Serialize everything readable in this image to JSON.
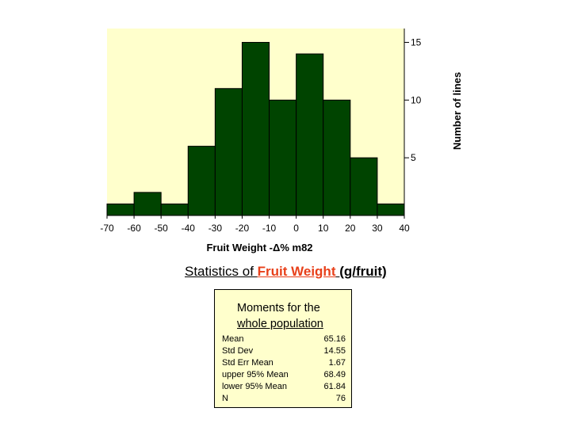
{
  "chart_data": {
    "type": "bar",
    "subtype": "histogram",
    "xlabel": "Fruit Weight -Δ% m82",
    "ylabel": "Number of lines",
    "bins": [
      {
        "from": -70,
        "to": -60,
        "count": 1
      },
      {
        "from": -60,
        "to": -50,
        "count": 2
      },
      {
        "from": -50,
        "to": -40,
        "count": 1
      },
      {
        "from": -40,
        "to": -30,
        "count": 6
      },
      {
        "from": -30,
        "to": -20,
        "count": 11
      },
      {
        "from": -20,
        "to": -10,
        "count": 15
      },
      {
        "from": -10,
        "to": 0,
        "count": 10
      },
      {
        "from": 0,
        "to": 10,
        "count": 14
      },
      {
        "from": 10,
        "to": 20,
        "count": 10
      },
      {
        "from": 20,
        "to": 30,
        "count": 5
      },
      {
        "from": 30,
        "to": 40,
        "count": 1
      }
    ],
    "xlim": [
      -70,
      40
    ],
    "ylim": [
      0,
      16.2
    ],
    "x_ticks": [
      "-70",
      "-60",
      "-50",
      "-40",
      "-30",
      "-20",
      "-10",
      "0",
      "10",
      "20",
      "30",
      "40"
    ],
    "y_ticks": [
      {
        "value": 5,
        "label": "5"
      },
      {
        "value": 10,
        "label": "10"
      },
      {
        "value": 15,
        "label": "15"
      }
    ],
    "y_axis_side": "right",
    "plot_background": "#ffffcc",
    "bar_color": "#004400"
  },
  "stats": {
    "heading_prefix": "Statistics of ",
    "heading_highlight": "Fruit Weight",
    "heading_unit": "(g/fruit)",
    "highlight_color": "#e8401a",
    "box_title_line1": "Moments for the",
    "box_title_line2": "whole population",
    "rows": [
      {
        "label": "Mean",
        "value": "65.16"
      },
      {
        "label": "Std Dev",
        "value": "14.55"
      },
      {
        "label": "Std Err Mean",
        "value": "1.67"
      },
      {
        "label": "upper 95% Mean",
        "value": "68.49"
      },
      {
        "label": "lower 95% Mean",
        "value": "61.84"
      },
      {
        "label": "N",
        "value": "76"
      }
    ]
  }
}
